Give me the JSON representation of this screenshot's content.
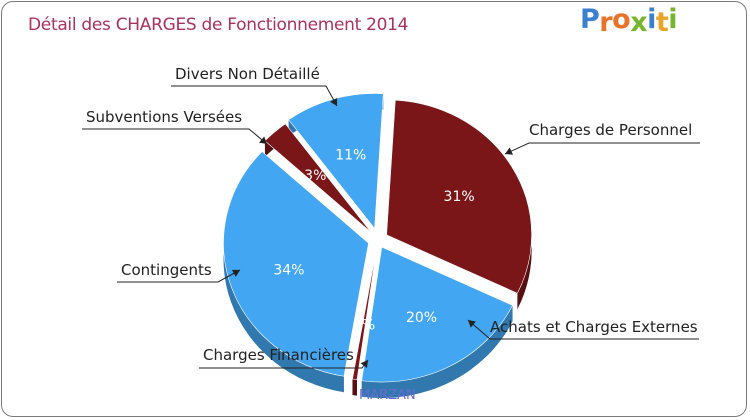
{
  "chart_data": {
    "type": "pie",
    "title": "Détail des CHARGES de Fonctionnement 2014",
    "subtitle": "MARZAN",
    "slices": [
      {
        "label": "Charges de Personnel",
        "value": 31,
        "display": "31%",
        "color": "#7a1518"
      },
      {
        "label": "Achats et Charges Externes",
        "value": 20,
        "display": "20%",
        "color": "#42a6f2"
      },
      {
        "label": "Charges Financières",
        "value": 0.5,
        "display": "0%",
        "color": "#7a1518"
      },
      {
        "label": "Contingents",
        "value": 34,
        "display": "34%",
        "color": "#42a6f2"
      },
      {
        "label": "Subventions Versées",
        "value": 3,
        "display": "3%",
        "color": "#7a1518"
      },
      {
        "label": "Divers Non Détaillé",
        "value": 11,
        "display": "11%",
        "color": "#42a6f2"
      }
    ]
  },
  "brand": {
    "letters": [
      {
        "ch": "P",
        "color": "#3b7fd0"
      },
      {
        "ch": "r",
        "color": "#e8732a"
      },
      {
        "ch": "o",
        "color": "#e8732a"
      },
      {
        "ch": "x",
        "color": "#78b52f"
      },
      {
        "ch": "i",
        "color": "#3b7fd0"
      },
      {
        "ch": "t",
        "color": "#e8a52a"
      },
      {
        "ch": "i",
        "color": "#78b52f"
      }
    ]
  }
}
